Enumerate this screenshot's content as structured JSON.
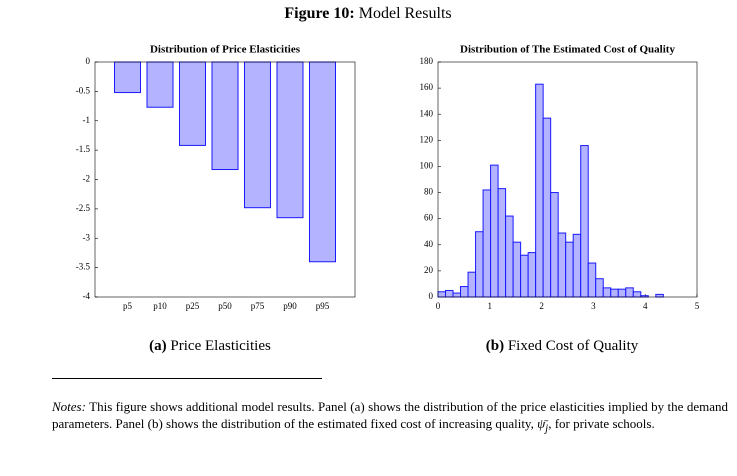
{
  "header": {
    "label": "Figure 10:",
    "title": "Model Results"
  },
  "chart_data": [
    {
      "type": "bar",
      "title": "Distribution of Price Elasticities",
      "categories": [
        "p5",
        "p10",
        "p25",
        "p50",
        "p75",
        "p90",
        "p95"
      ],
      "values": [
        -0.52,
        -0.77,
        -1.42,
        -1.83,
        -2.48,
        -2.65,
        -3.4
      ],
      "color": "#b3b3ff",
      "edge_color": "#1a1aff",
      "ylim": [
        -4,
        0
      ],
      "yticks": [
        0,
        -0.5,
        -1,
        -1.5,
        -2,
        -2.5,
        -3,
        -3.5,
        -4
      ]
    },
    {
      "type": "histogram",
      "title": "Distribution of The Estimated Cost of Quality",
      "bins": [
        0,
        0.145,
        0.29,
        0.435,
        0.58,
        0.725,
        0.87,
        1.015,
        1.16,
        1.305,
        1.45,
        1.595,
        1.74,
        1.885,
        2.03,
        2.175,
        2.32,
        2.465,
        2.61,
        2.755,
        2.9,
        3.045,
        3.19,
        3.335,
        3.48,
        3.625,
        3.77,
        3.915,
        4.06,
        4.205,
        4.35
      ],
      "values": [
        4,
        5,
        3,
        8,
        19,
        50,
        82,
        101,
        83,
        62,
        42,
        32,
        34,
        163,
        137,
        80,
        49,
        42,
        48,
        116,
        26,
        14,
        7,
        6,
        6,
        7,
        4,
        1,
        0,
        2
      ],
      "color": "#b3b3ff",
      "edge_color": "#1a1aff",
      "xlim": [
        0,
        5
      ],
      "xticks": [
        0,
        1,
        2,
        3,
        4,
        5
      ],
      "ylim": [
        0,
        180
      ],
      "yticks": [
        0,
        20,
        40,
        60,
        80,
        100,
        120,
        140,
        160,
        180
      ]
    }
  ],
  "captions": [
    {
      "label": "(a)",
      "text": "Price Elasticities"
    },
    {
      "label": "(b)",
      "text": "Fixed Cost of Quality"
    }
  ],
  "notes": {
    "label": "Notes:",
    "text_before": "This figure shows additional model results. Panel (a) shows the distribution of the price elasticities implied by the demand parameters. Panel (b) shows the distribution of the estimated fixed cost of increasing quality,",
    "symbol": "ψ̄",
    "subscript": "j",
    "text_after": ", for private schools."
  }
}
